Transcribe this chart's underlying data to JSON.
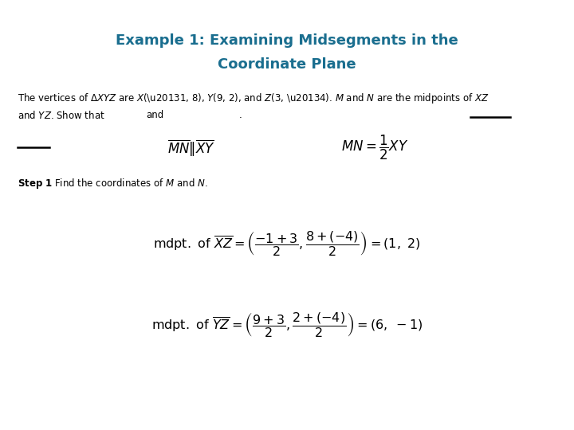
{
  "title_line1": "Example 1: Examining Midsegments in the",
  "title_line2": "Coordinate Plane",
  "title_color": "#1a6e8f",
  "bg_color": "#ffffff",
  "figsize": [
    7.2,
    5.4
  ],
  "dpi": 100
}
